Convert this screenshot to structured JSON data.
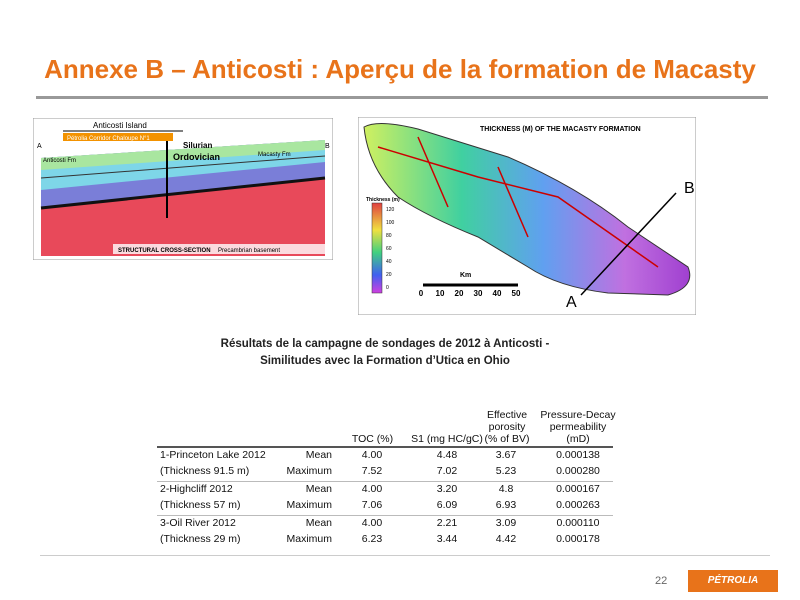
{
  "title": "Annexe B – Anticosti : Aperçu de la formation de Macasty",
  "cross_section": {
    "labels": [
      "Anticosti Island",
      "Pétrolia Corridor Chaloupe N°1",
      "Silurian",
      "Ordovician",
      "Macasty Fm",
      "Anticosti Fm",
      "STRUCTURAL CROSS-SECTION",
      "Precambrian basement",
      "A",
      "B"
    ]
  },
  "map": {
    "title": "THICKNESS (M) OF THE MACASTY FORMATION",
    "legend_title": "Thickness (m)",
    "legend_ticks": [
      "120",
      "100",
      "80",
      "60",
      "40",
      "20",
      "0"
    ],
    "scale_unit": "Km",
    "scale_ticks": [
      "0",
      "10",
      "20",
      "30",
      "40",
      "50"
    ],
    "point_a": "A",
    "point_b": "B"
  },
  "table": {
    "caption": [
      "Résultats de la campagne de sondages de 2012 à Anticosti  -",
      "Similitudes avec  la Formation d’Utica en Ohio"
    ],
    "headers": [
      "TOC (%)",
      "S1 (mg HC/gC)",
      "Effective porosity (% of BV)",
      "Pressure-Decay permeability (mD)"
    ],
    "groups": [
      {
        "name": "1-Princeton Lake 2012",
        "thickness": "(Thickness 91.5 m)",
        "rows": [
          [
            "Mean",
            "4.00",
            "4.48",
            "3.67",
            "0.000138"
          ],
          [
            "Maximum",
            "7.52",
            "7.02",
            "5.23",
            "0.000280"
          ]
        ]
      },
      {
        "name": "2-Highcliff 2012",
        "thickness": "(Thickness 57 m)",
        "rows": [
          [
            "Mean",
            "4.00",
            "3.20",
            "4.8",
            "0.000167"
          ],
          [
            "Maximum",
            "7.06",
            "6.09",
            "6.93",
            "0.000263"
          ]
        ]
      },
      {
        "name": "3-Oil River 2012",
        "thickness": "(Thickness 29 m)",
        "rows": [
          [
            "Mean",
            "4.00",
            "2.21",
            "3.09",
            "0.000110"
          ],
          [
            "Maximum",
            "6.23",
            "3.44",
            "4.42",
            "0.000178"
          ]
        ]
      }
    ]
  },
  "footer": {
    "page": "22",
    "logo": "PÉTROLIA"
  }
}
